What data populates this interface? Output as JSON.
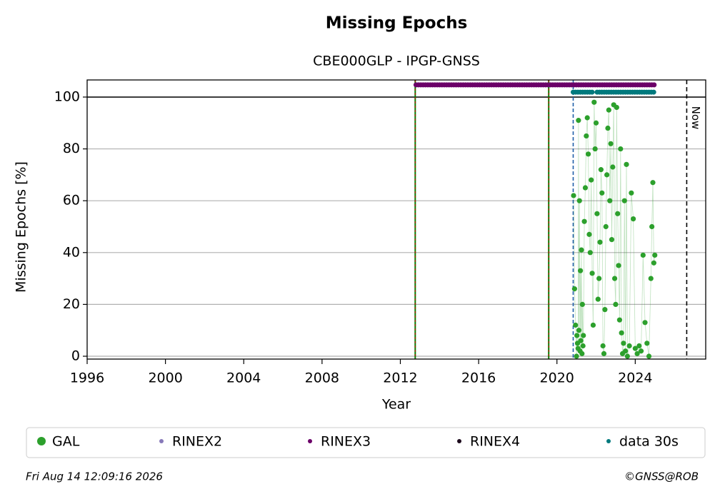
{
  "chart_data": {
    "type": "scatter",
    "title": "Missing Epochs",
    "subtitle": "CBE000GLP - IPGP-GNSS",
    "xlabel": "Year",
    "ylabel": "Missing Epochs [%]",
    "xlim": [
      1996,
      2027.6
    ],
    "ylim": [
      -1.1,
      106.6
    ],
    "xticks": [
      1996,
      2000,
      2004,
      2008,
      2012,
      2016,
      2020,
      2024
    ],
    "yticks": [
      0,
      20,
      40,
      60,
      80,
      100
    ],
    "grid": true,
    "threshold": 100,
    "events": [
      2012.76,
      2019.58
    ],
    "start_line": 2020.83,
    "now": {
      "x": 2026.63,
      "label": "Now"
    },
    "series": [
      {
        "name": "GAL",
        "color": "#2ca02c",
        "style": "dots",
        "x": [
          2020.85,
          2020.9,
          2020.95,
          2021.0,
          2021.02,
          2021.05,
          2021.08,
          2021.1,
          2021.12,
          2021.15,
          2021.18,
          2021.2,
          2021.22,
          2021.25,
          2021.28,
          2021.3,
          2021.33,
          2021.35,
          2021.4,
          2021.45,
          2021.5,
          2021.55,
          2021.6,
          2021.65,
          2021.7,
          2021.75,
          2021.8,
          2021.85,
          2021.9,
          2021.95,
          2022.0,
          2022.05,
          2022.1,
          2022.15,
          2022.2,
          2022.25,
          2022.3,
          2022.35,
          2022.4,
          2022.45,
          2022.5,
          2022.55,
          2022.6,
          2022.65,
          2022.7,
          2022.75,
          2022.8,
          2022.85,
          2022.9,
          2022.95,
          2023.0,
          2023.05,
          2023.1,
          2023.15,
          2023.2,
          2023.25,
          2023.3,
          2023.35,
          2023.4,
          2023.45,
          2023.5,
          2023.55,
          2023.6,
          2023.7,
          2023.8,
          2023.9,
          2024.0,
          2024.1,
          2024.2,
          2024.3,
          2024.4,
          2024.5,
          2024.6,
          2024.7,
          2024.8,
          2024.85,
          2024.9,
          2024.95,
          2025.0
        ],
        "values": [
          62,
          26,
          12,
          0,
          8,
          5,
          3,
          91,
          10,
          60,
          2,
          33,
          6,
          41,
          1,
          20,
          4,
          8,
          52,
          65,
          85,
          92,
          78,
          47,
          40,
          68,
          32,
          12,
          98,
          80,
          90,
          55,
          22,
          30,
          44,
          72,
          63,
          4,
          1,
          18,
          50,
          70,
          88,
          95,
          60,
          82,
          45,
          73,
          97,
          30,
          20,
          96,
          55,
          35,
          14,
          80,
          9,
          1,
          5,
          60,
          2,
          74,
          0,
          4,
          63,
          53,
          3,
          1,
          4,
          2,
          39,
          13,
          5,
          0,
          30,
          50,
          67,
          36,
          39
        ]
      },
      {
        "name": "RINEX2",
        "color": "#8779b9",
        "style": "band",
        "x": [],
        "values": []
      },
      {
        "name": "RINEX3",
        "color": "#6b0068",
        "style": "band",
        "x": [
          2012.8,
          2025.05
        ],
        "values": [
          104.7,
          104.7
        ]
      },
      {
        "name": "RINEX4",
        "color": "#1c0a1c",
        "style": "band",
        "x": [],
        "values": []
      },
      {
        "name": "data 30s",
        "color": "#00797d",
        "style": "band",
        "x": [
          2020.83,
          2021.85,
          2021.9,
          2022.05,
          2025.05
        ],
        "values": [
          101.9,
          101.9,
          null,
          101.9,
          101.9
        ]
      }
    ],
    "footer_left": "Fri Aug 14 12:09:16 2026",
    "footer_right": "©GNSS@ROB"
  }
}
